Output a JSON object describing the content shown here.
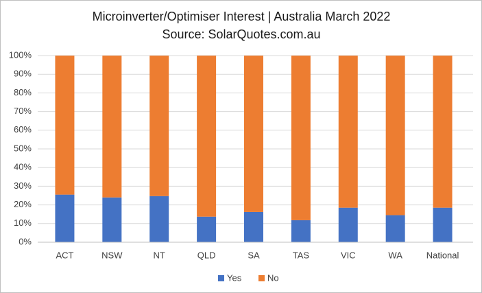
{
  "chart_data": {
    "type": "stacked_bar",
    "title": "Microinverter/Optimiser  Interest  | Australia March 2022",
    "subtitle": "Source: SolarQuotes.com.au",
    "categories": [
      "ACT",
      "NSW",
      "NT",
      "QLD",
      "SA",
      "TAS",
      "VIC",
      "WA",
      "National"
    ],
    "series": [
      {
        "name": "Yes",
        "color": "#4472c4",
        "values": [
          25.5,
          24,
          24.7,
          13.7,
          16.2,
          11.8,
          18.5,
          14.5,
          18.5
        ]
      },
      {
        "name": "No",
        "color": "#ed7d31",
        "values": [
          74.5,
          76,
          75.3,
          86.3,
          83.8,
          88.2,
          81.5,
          85.5,
          81.5
        ]
      }
    ],
    "ylim": [
      0,
      100
    ],
    "yticks": [
      {
        "value": 0,
        "label": "0%"
      },
      {
        "value": 10,
        "label": "10%"
      },
      {
        "value": 20,
        "label": "20%"
      },
      {
        "value": 30,
        "label": "30%"
      },
      {
        "value": 40,
        "label": "40%"
      },
      {
        "value": 50,
        "label": "50%"
      },
      {
        "value": 60,
        "label": "60%"
      },
      {
        "value": 70,
        "label": "70%"
      },
      {
        "value": 80,
        "label": "80%"
      },
      {
        "value": 90,
        "label": "90%"
      },
      {
        "value": 100,
        "label": "100%"
      }
    ],
    "grid": true,
    "legend": "bottom"
  }
}
